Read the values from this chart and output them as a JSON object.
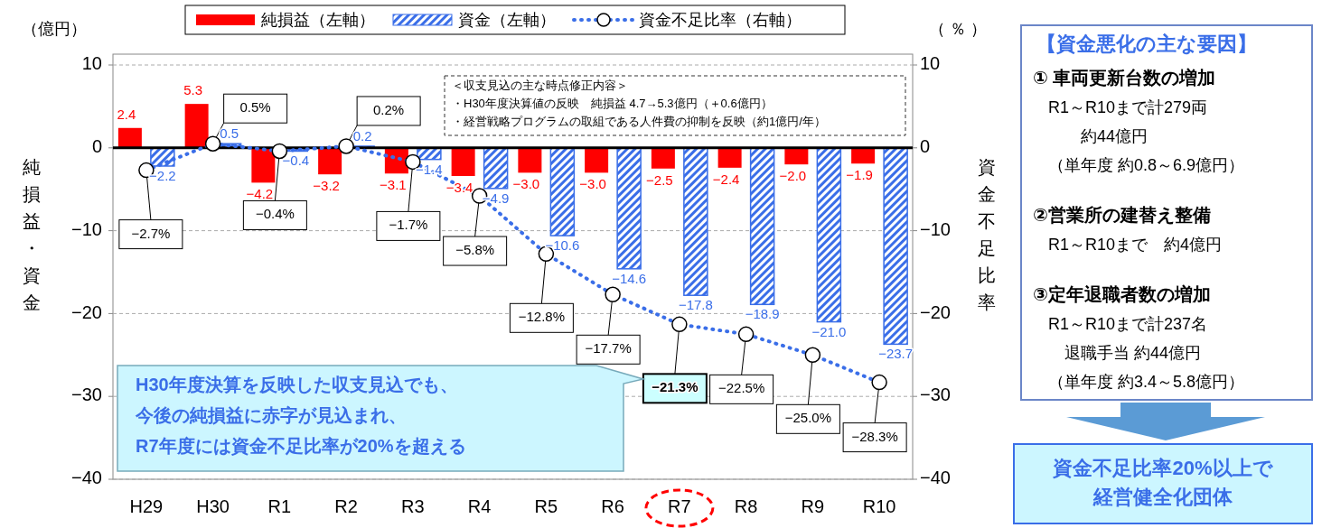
{
  "chart_data": [
    {
      "type": "bar",
      "categories": [
        "H29",
        "H30",
        "R1",
        "R2",
        "R3",
        "R4",
        "R5",
        "R6",
        "R7",
        "R8",
        "R9",
        "R10"
      ],
      "series": [
        {
          "name": "純損益（左軸）",
          "color": "#ff0000",
          "values": [
            2.4,
            5.3,
            -4.2,
            -3.2,
            -3.1,
            -3.4,
            -3.0,
            -3.0,
            -2.5,
            -2.4,
            -2.0,
            -1.9
          ],
          "value_labels": [
            "2.4",
            "5.3",
            "−4.2",
            "−3.2",
            "−3.1",
            "−3.4",
            "−3.0",
            "−3.0",
            "−2.5",
            "−2.4",
            "−2.0",
            "−1.9"
          ]
        },
        {
          "name": "資金（左軸）",
          "color": "#3a6ee8",
          "values": [
            -2.2,
            0.5,
            -0.4,
            0.2,
            -1.4,
            -4.9,
            -10.6,
            -14.6,
            -17.8,
            -18.9,
            -21.0,
            -23.7
          ],
          "value_labels": [
            "−2.2",
            "0.5",
            "−0.4",
            "0.2",
            "−1.4",
            "−4.9",
            "−10.6",
            "−14.6",
            "−17.8",
            "−18.9",
            "−21.0",
            "−23.7"
          ]
        },
        {
          "name": "資金不足比率（右軸）",
          "type": "line",
          "axis": "y2",
          "color": "#3a6ee8",
          "line_style": "dotted",
          "marker": "circle",
          "values": [
            -2.7,
            0.5,
            -0.4,
            0.2,
            -1.7,
            -5.8,
            -12.8,
            -17.7,
            -21.3,
            -22.5,
            -25.0,
            -28.3
          ],
          "value_labels": [
            "−2.7%",
            "0.5%",
            "−0.4%",
            "0.2%",
            "−1.7%",
            "−5.8%",
            "−12.8%",
            "−17.7%",
            "−21.3%",
            "−22.5%",
            "−25.0%",
            "−28.3%"
          ]
        }
      ],
      "ylabel": "純損益・資金",
      "y2label": "資金不足比率",
      "ylim": [
        -40,
        10
      ],
      "yticks": [
        -40,
        -30,
        -20,
        -10,
        0,
        10
      ],
      "y2lim": [
        -40,
        10
      ],
      "y2ticks": [
        -40,
        -30,
        -20,
        -10,
        0,
        10
      ],
      "grid": "y",
      "legend": "top",
      "annotations": [
        "（億円）",
        "（ ％ ）",
        "＜収支見込の主な時点修正内容＞",
        "・H30年度決算値の反映　純損益 4.7→5.3億円（＋0.6億円）",
        "・経営戦略プログラムの取組である人件費の抑制を反映（約1億円/年）",
        "H30年度決算を反映した収支見込でも、今後の純損益に赤字が見込まれ、R7年度には資金不足比率が20%を超える"
      ]
    },
    {
      "type": "other",
      "title": "【資金悪化の主な要因】"
    },
    {
      "type": "other",
      "title": "① 車両更新台数の増加",
      "annotations": [
        "R1～R10まで計279両",
        "　　約44億円",
        "（単年度 約0.8～6.9億円）"
      ]
    },
    {
      "type": "other",
      "title": "②営業所の建替え整備",
      "annotations": [
        "R1～R10まで　約4億円"
      ]
    },
    {
      "type": "other",
      "title": "③定年退職者数の増加",
      "annotations": [
        "R1～R10まで計237名",
        "　退職手当 約44億円",
        "（単年度 約3.4～5.8億円）"
      ]
    },
    {
      "type": "other",
      "title": "資金不足比率20%以上で",
      "subtitle": "経営健全化団体"
    }
  ]
}
